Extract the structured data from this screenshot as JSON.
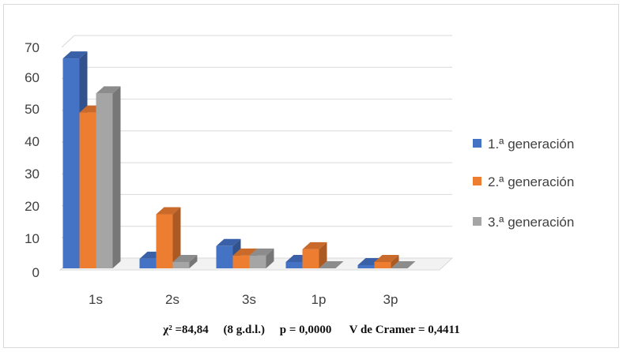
{
  "chart_data": {
    "type": "bar",
    "style": "3d-clustered-column",
    "categories": [
      "1s",
      "2s",
      "3s",
      "1p",
      "3p"
    ],
    "series": [
      {
        "name": "1.ª generación",
        "color": "#4472c4",
        "values": [
          66,
          3,
          7,
          2,
          1
        ]
      },
      {
        "name": "2.ª generación",
        "color": "#ed7d31",
        "values": [
          49,
          17,
          4,
          6,
          2
        ]
      },
      {
        "name": "3.ª generación",
        "color": "#a5a5a5",
        "values": [
          55,
          2,
          4,
          0,
          0
        ]
      }
    ],
    "y_ticks": [
      "0",
      "10",
      "20",
      "30",
      "40",
      "50",
      "60",
      "70"
    ],
    "ylim": [
      0,
      70
    ],
    "grid": true,
    "legend_position": "right"
  },
  "stats": {
    "chi2": "χ² =84,84",
    "dof": "(8 g.d.l.)",
    "p": "p = 0,0000",
    "cramer": "V de Cramer = 0,4411"
  }
}
